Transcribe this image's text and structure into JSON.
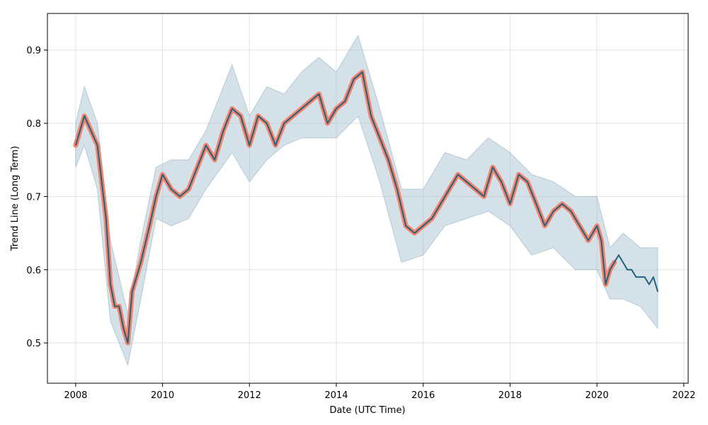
{
  "chart_data": {
    "type": "line",
    "xlabel": "Date (UTC Time)",
    "ylabel": "Trend Line (Long Term)",
    "xlim": [
      2007.35,
      2022.1
    ],
    "ylim": [
      0.445,
      0.95
    ],
    "x_ticks": [
      2008,
      2010,
      2012,
      2014,
      2016,
      2018,
      2020,
      2022
    ],
    "y_ticks": [
      0.5,
      0.6,
      0.7,
      0.8,
      0.9
    ],
    "grid": true,
    "colors": {
      "trend_line": "#25607f",
      "history_highlight": "#f4846b",
      "band_fill": "#9fbccd",
      "band_edge": "#9fbccd",
      "grid": "#e2e2e2"
    },
    "series": [
      {
        "role": "trend",
        "x": [
          2008.0,
          2008.1,
          2008.2,
          2008.35,
          2008.5,
          2008.6,
          2008.7,
          2008.8,
          2008.9,
          2009.0,
          2009.1,
          2009.2,
          2009.3,
          2009.5,
          2009.7,
          2009.85,
          2010.0,
          2010.2,
          2010.4,
          2010.6,
          2010.8,
          2011.0,
          2011.2,
          2011.4,
          2011.6,
          2011.8,
          2012.0,
          2012.2,
          2012.4,
          2012.6,
          2012.8,
          2013.0,
          2013.2,
          2013.4,
          2013.6,
          2013.8,
          2014.0,
          2014.2,
          2014.4,
          2014.6,
          2014.8,
          2015.0,
          2015.2,
          2015.4,
          2015.6,
          2015.8,
          2016.0,
          2016.2,
          2016.4,
          2016.6,
          2016.8,
          2017.0,
          2017.2,
          2017.4,
          2017.6,
          2017.8,
          2018.0,
          2018.2,
          2018.4,
          2018.6,
          2018.8,
          2019.0,
          2019.2,
          2019.4,
          2019.6,
          2019.8,
          2020.0,
          2020.1,
          2020.2,
          2020.3,
          2020.4,
          2020.5,
          2020.6,
          2020.7,
          2020.8,
          2020.9,
          2021.0,
          2021.1,
          2021.2,
          2021.3,
          2021.4
        ],
        "values": [
          0.77,
          0.79,
          0.81,
          0.79,
          0.77,
          0.72,
          0.67,
          0.58,
          0.55,
          0.55,
          0.52,
          0.5,
          0.57,
          0.61,
          0.66,
          0.7,
          0.73,
          0.71,
          0.7,
          0.71,
          0.74,
          0.77,
          0.75,
          0.79,
          0.82,
          0.81,
          0.77,
          0.81,
          0.8,
          0.77,
          0.8,
          0.81,
          0.82,
          0.83,
          0.84,
          0.8,
          0.82,
          0.83,
          0.86,
          0.87,
          0.81,
          0.78,
          0.75,
          0.71,
          0.66,
          0.65,
          0.66,
          0.67,
          0.69,
          0.71,
          0.73,
          0.72,
          0.71,
          0.7,
          0.74,
          0.72,
          0.69,
          0.73,
          0.72,
          0.69,
          0.66,
          0.68,
          0.69,
          0.68,
          0.66,
          0.64,
          0.66,
          0.64,
          0.58,
          0.6,
          0.61,
          0.62,
          0.61,
          0.6,
          0.6,
          0.59,
          0.59,
          0.59,
          0.58,
          0.59,
          0.57
        ]
      },
      {
        "role": "upper_band",
        "x": [
          2008.0,
          2008.2,
          2008.5,
          2008.8,
          2009.0,
          2009.2,
          2009.5,
          2009.85,
          2010.2,
          2010.6,
          2011.0,
          2011.6,
          2012.0,
          2012.4,
          2012.8,
          2013.2,
          2013.6,
          2014.0,
          2014.5,
          2015.0,
          2015.5,
          2016.0,
          2016.5,
          2017.0,
          2017.5,
          2018.0,
          2018.5,
          2019.0,
          2019.5,
          2020.0,
          2020.3,
          2020.6,
          2021.0,
          2021.4
        ],
        "values": [
          0.8,
          0.85,
          0.8,
          0.64,
          0.59,
          0.54,
          0.64,
          0.74,
          0.75,
          0.75,
          0.79,
          0.88,
          0.81,
          0.85,
          0.84,
          0.87,
          0.89,
          0.87,
          0.92,
          0.82,
          0.71,
          0.71,
          0.76,
          0.75,
          0.78,
          0.76,
          0.73,
          0.72,
          0.7,
          0.7,
          0.63,
          0.65,
          0.63,
          0.63
        ]
      },
      {
        "role": "lower_band",
        "x": [
          2008.0,
          2008.2,
          2008.5,
          2008.8,
          2009.0,
          2009.2,
          2009.5,
          2009.85,
          2010.2,
          2010.6,
          2011.0,
          2011.6,
          2012.0,
          2012.4,
          2012.8,
          2013.2,
          2013.6,
          2014.0,
          2014.5,
          2015.0,
          2015.5,
          2016.0,
          2016.5,
          2017.0,
          2017.5,
          2018.0,
          2018.5,
          2019.0,
          2019.5,
          2020.0,
          2020.3,
          2020.6,
          2021.0,
          2021.4
        ],
        "values": [
          0.74,
          0.77,
          0.71,
          0.53,
          0.5,
          0.47,
          0.56,
          0.67,
          0.66,
          0.67,
          0.71,
          0.76,
          0.72,
          0.75,
          0.77,
          0.78,
          0.78,
          0.78,
          0.81,
          0.72,
          0.61,
          0.62,
          0.66,
          0.67,
          0.68,
          0.66,
          0.62,
          0.63,
          0.6,
          0.6,
          0.56,
          0.56,
          0.55,
          0.52
        ]
      }
    ],
    "highlight_until": 2020.45
  }
}
